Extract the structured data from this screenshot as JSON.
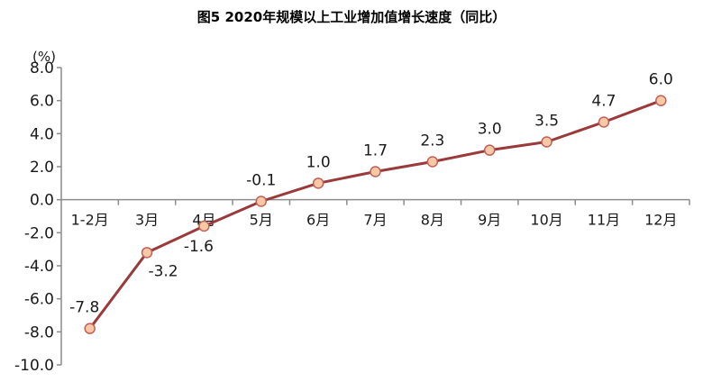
{
  "chart_data": {
    "type": "line",
    "title": "图5 2020年规模以上工业增加值增长速度（同比）",
    "xlabel": "",
    "ylabel": "（%）",
    "ylim": [
      -10.0,
      8.0
    ],
    "yticks": [
      "8.0",
      "6.0",
      "4.0",
      "2.0",
      "0.0",
      "-2.0",
      "-4.0",
      "-6.0",
      "-8.0",
      "-10.0"
    ],
    "grid": false,
    "legend": null,
    "categories": [
      "1-2月",
      "3月",
      "4月",
      "5月",
      "6月",
      "7月",
      "8月",
      "9月",
      "10月",
      "11月",
      "12月"
    ],
    "series": [
      {
        "name": "规模以上工业增加值增长速度",
        "values": [
          -7.8,
          -3.2,
          -1.6,
          -0.1,
          1.0,
          1.7,
          2.3,
          3.0,
          3.5,
          4.7,
          6.0
        ],
        "labels": [
          "-7.8",
          "-3.2",
          "-1.6",
          "-0.1",
          "1.0",
          "1.7",
          "2.3",
          "3.0",
          "3.5",
          "4.7",
          "6.0"
        ]
      }
    ],
    "colors": {
      "line": "#9b3a3a",
      "marker_fill": "#f9c9a5",
      "marker_stroke": "#c0605a",
      "axis": "#8c8c8c"
    }
  }
}
